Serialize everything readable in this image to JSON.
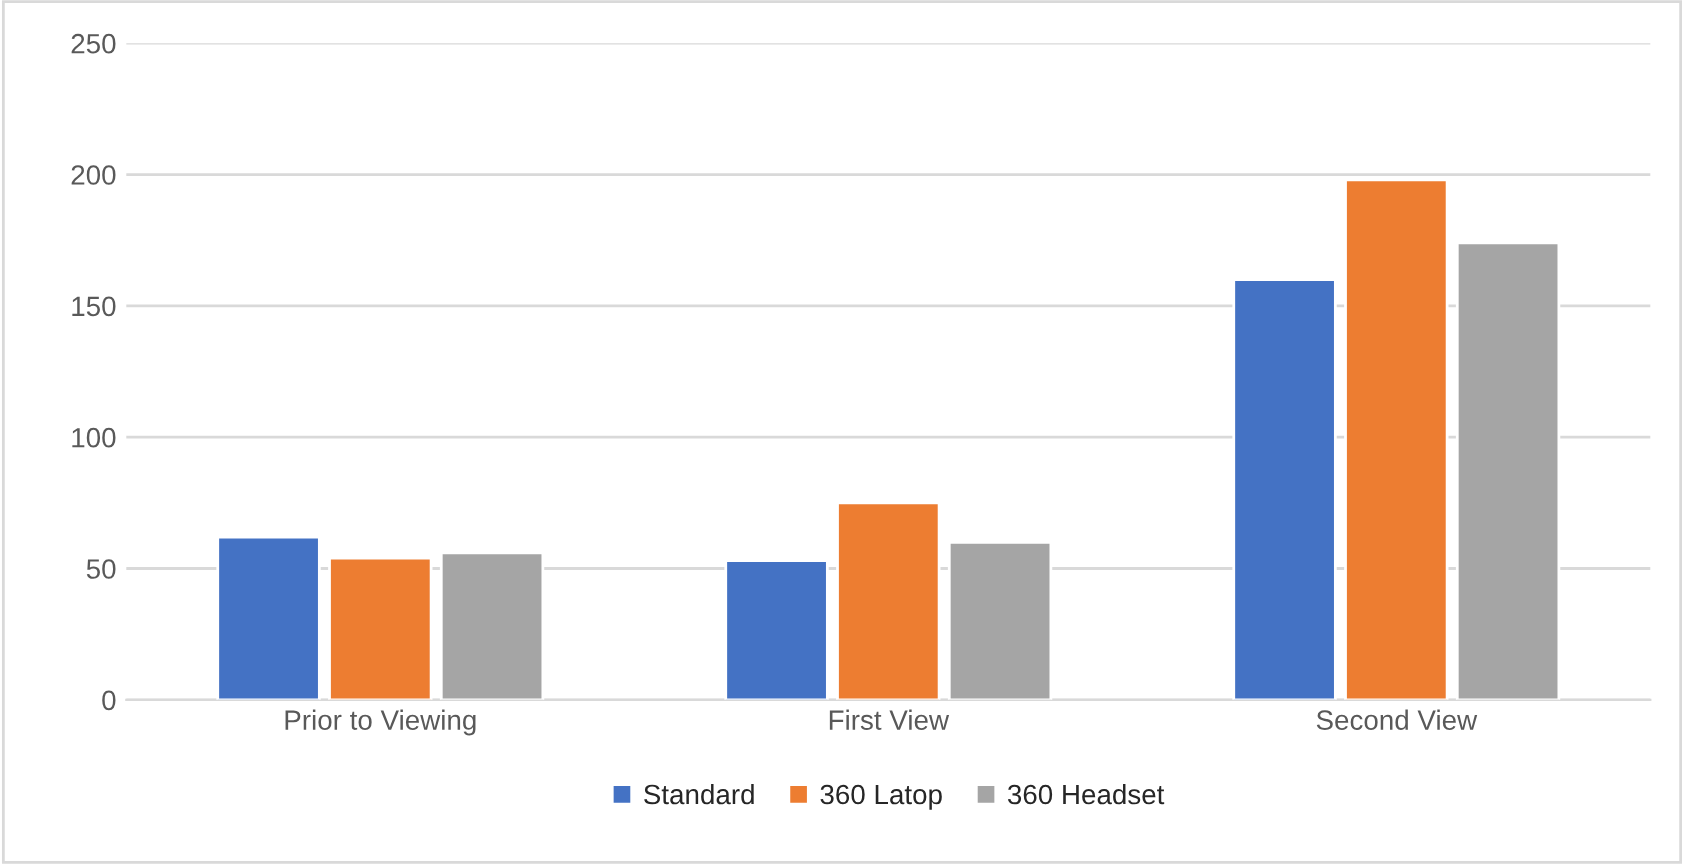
{
  "chart_data": {
    "type": "bar",
    "categories": [
      "Prior to Viewing",
      "First View",
      "Second View"
    ],
    "series": [
      {
        "name": "Standard",
        "color": "#4472c4",
        "values": [
          62,
          53,
          160
        ]
      },
      {
        "name": "360 Latop",
        "color": "#ed7d31",
        "values": [
          54,
          75,
          198
        ]
      },
      {
        "name": "360 Headset",
        "color": "#a5a5a5",
        "values": [
          56,
          60,
          174
        ]
      }
    ],
    "ylim": [
      0,
      250
    ],
    "yticks": [
      0,
      50,
      100,
      150,
      200,
      250
    ],
    "grid": "y",
    "legend": "bottom"
  }
}
